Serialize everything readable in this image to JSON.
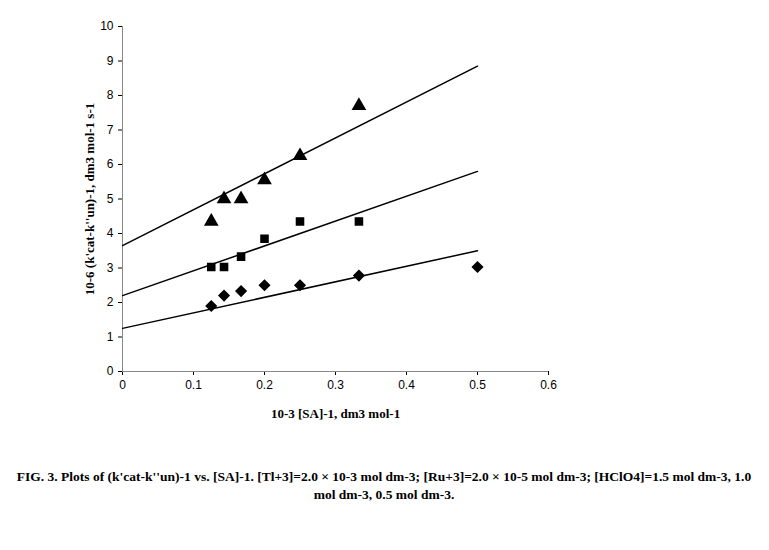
{
  "chart_data": {
    "type": "scatter",
    "x_label": "10-3 [SA]-1, dm3 mol-1",
    "y_label": "10-6 (k'cat-k''un)-1, dm3 mol-1 s-1",
    "caption": "FIG. 3. Plots of (k'cat-k''un)-1 vs. [SA]-1. [Tl+3]=2.0 × 10-3 mol dm-3; [Ru+3]=2.0 × 10-5 mol dm-3; [HClO4]=1.5 mol dm-3, 1.0 mol dm-3, 0.5 mol dm-3.",
    "xlim": [
      0,
      0.6
    ],
    "xticks": [
      0,
      0.1,
      0.2,
      0.3,
      0.4,
      0.5,
      0.6
    ],
    "ylim": [
      0,
      10
    ],
    "yticks": [
      0,
      1,
      2,
      3,
      4,
      5,
      6,
      7,
      8,
      9,
      10
    ],
    "grid": false,
    "series": [
      {
        "type": "scatter",
        "marker": "triangle",
        "color": "#000000",
        "x": [
          0.125,
          0.143,
          0.167,
          0.2,
          0.25,
          0.333
        ],
        "values": [
          4.35,
          5.0,
          5.0,
          5.55,
          6.25,
          7.7
        ]
      },
      {
        "type": "scatter",
        "marker": "square",
        "color": "#000000",
        "x": [
          0.125,
          0.143,
          0.167,
          0.2,
          0.25,
          0.333
        ],
        "values": [
          3.03,
          3.03,
          3.33,
          3.85,
          4.35,
          4.35
        ]
      },
      {
        "type": "scatter",
        "marker": "diamond",
        "color": "#000000",
        "x": [
          0.125,
          0.143,
          0.167,
          0.2,
          0.25,
          0.333,
          0.5
        ],
        "values": [
          1.9,
          2.2,
          2.33,
          2.5,
          2.5,
          2.78,
          3.03
        ]
      },
      {
        "type": "line",
        "line_style": "solid",
        "color": "#000000",
        "x": [
          0,
          0.5
        ],
        "values": [
          3.65,
          8.85
        ]
      },
      {
        "type": "line",
        "line_style": "solid",
        "color": "#000000",
        "x": [
          0,
          0.5
        ],
        "values": [
          2.2,
          5.8
        ]
      },
      {
        "type": "line",
        "line_style": "solid",
        "color": "#000000",
        "x": [
          0,
          0.5
        ],
        "values": [
          1.25,
          3.5
        ]
      }
    ]
  }
}
